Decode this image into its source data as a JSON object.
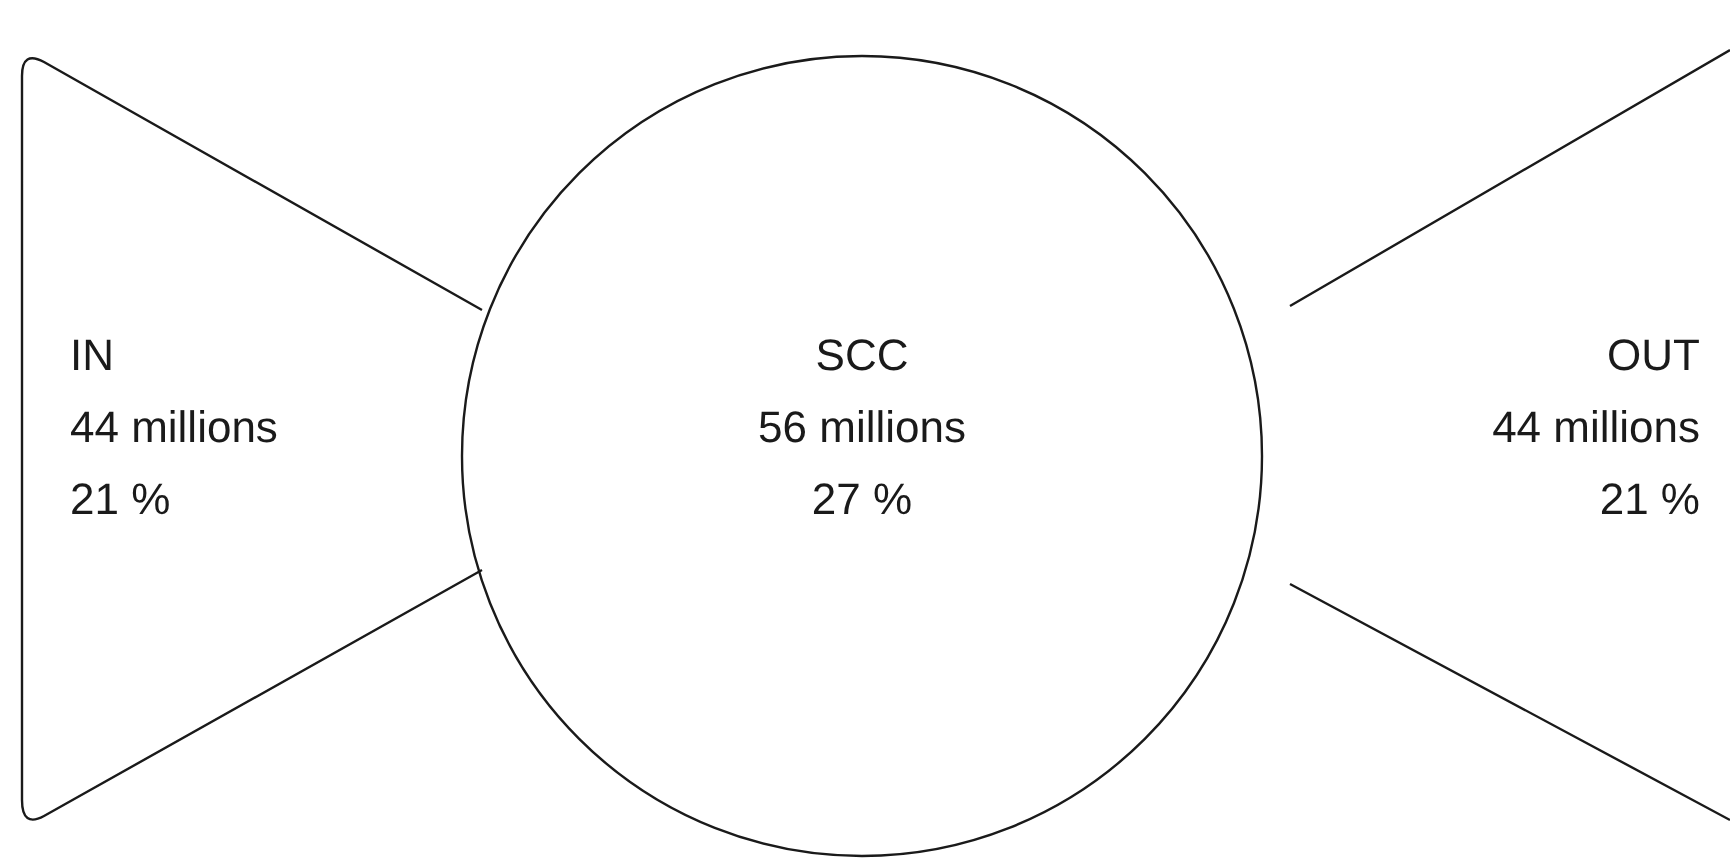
{
  "chart_data": {
    "type": "other",
    "categories": [
      "IN",
      "SCC",
      "OUT"
    ],
    "series": [
      {
        "values": [
          44,
          56,
          44
        ],
        "value_labels": [
          "44 millions",
          "56 millions",
          "44 millions"
        ]
      },
      {
        "values": [
          21,
          27,
          21
        ],
        "value_labels": [
          "21 %",
          "27 %",
          "21 %"
        ]
      }
    ]
  }
}
